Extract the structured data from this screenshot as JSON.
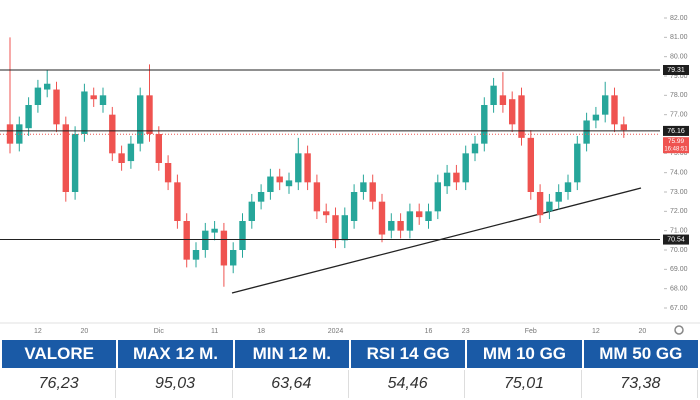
{
  "chart_data": {
    "type": "candlestick",
    "categories": [
      null,
      null,
      null,
      "12",
      null,
      null,
      null,
      null,
      "20",
      null,
      null,
      null,
      null,
      null,
      null,
      null,
      "Dic",
      null,
      null,
      null,
      null,
      null,
      "11",
      null,
      null,
      null,
      null,
      "18",
      null,
      null,
      null,
      null,
      null,
      null,
      null,
      "2024",
      null,
      null,
      null,
      null,
      null,
      null,
      null,
      null,
      null,
      "16",
      null,
      null,
      null,
      "23",
      null,
      null,
      null,
      null,
      null,
      null,
      "Feb",
      null,
      null,
      null,
      null,
      null,
      null,
      "12",
      null,
      null,
      null,
      null,
      "20"
    ],
    "open": [
      76.5,
      75.5,
      76.3,
      77.5,
      78.3,
      78.3,
      76.5,
      73.0,
      76.0,
      78.0,
      77.5,
      77.0,
      75.0,
      74.6,
      75.5,
      78.0,
      76.0,
      74.5,
      73.5,
      71.5,
      69.5,
      70.0,
      70.9,
      71.0,
      69.2,
      70.0,
      71.5,
      72.5,
      73.0,
      73.8,
      73.3,
      73.5,
      75.0,
      73.5,
      72.0,
      71.8,
      70.5,
      71.5,
      73.0,
      73.5,
      72.5,
      71.0,
      71.5,
      71.0,
      72.0,
      71.5,
      72.0,
      73.3,
      74.0,
      73.5,
      75.0,
      75.5,
      77.5,
      78.0,
      77.8,
      78.0,
      75.8,
      73.0,
      72.0,
      72.5,
      73.0,
      73.5,
      75.5,
      76.7,
      77.0,
      78.0,
      76.5,
      null,
      null
    ],
    "high": [
      81.0,
      76.9,
      77.9,
      78.8,
      79.3,
      78.7,
      76.9,
      76.4,
      78.6,
      78.4,
      78.4,
      77.4,
      75.4,
      75.9,
      78.4,
      79.6,
      76.4,
      74.9,
      73.9,
      71.9,
      70.4,
      71.4,
      71.5,
      71.4,
      70.4,
      71.9,
      72.9,
      73.4,
      74.2,
      74.2,
      74.0,
      75.8,
      75.4,
      73.9,
      72.4,
      72.2,
      72.2,
      73.4,
      73.9,
      73.9,
      72.9,
      71.9,
      71.9,
      72.4,
      72.4,
      72.4,
      73.9,
      74.4,
      74.4,
      75.4,
      75.9,
      77.9,
      78.9,
      79.2,
      78.2,
      78.4,
      76.2,
      73.4,
      72.9,
      73.4,
      73.9,
      75.9,
      77.1,
      77.4,
      78.7,
      78.4,
      76.9,
      null,
      null
    ],
    "low": [
      75.0,
      75.1,
      75.9,
      77.1,
      77.9,
      76.1,
      72.5,
      72.6,
      75.6,
      77.4,
      77.1,
      74.6,
      74.1,
      74.2,
      75.1,
      75.6,
      74.1,
      73.1,
      71.1,
      69.1,
      69.1,
      69.6,
      70.5,
      68.1,
      68.8,
      69.6,
      71.1,
      72.1,
      72.6,
      73.1,
      72.9,
      73.1,
      73.1,
      71.6,
      71.4,
      70.1,
      70.1,
      71.1,
      72.6,
      72.1,
      70.4,
      70.6,
      70.6,
      70.6,
      71.3,
      71.1,
      71.6,
      72.9,
      73.1,
      73.1,
      74.6,
      75.1,
      77.1,
      77.1,
      76.1,
      75.4,
      72.6,
      71.4,
      71.6,
      72.1,
      72.6,
      73.1,
      75.1,
      76.3,
      76.6,
      76.1,
      75.8,
      null,
      null
    ],
    "close": [
      75.5,
      76.5,
      77.5,
      78.4,
      78.6,
      76.5,
      73.0,
      76.0,
      78.2,
      77.8,
      78.0,
      75.0,
      74.5,
      75.5,
      78.0,
      76.0,
      74.5,
      73.5,
      71.5,
      69.5,
      70.0,
      71.0,
      71.1,
      69.2,
      70.0,
      71.5,
      72.5,
      73.0,
      73.8,
      73.5,
      73.6,
      75.0,
      73.5,
      72.0,
      71.8,
      70.5,
      71.8,
      73.0,
      73.5,
      72.5,
      70.8,
      71.5,
      71.0,
      72.0,
      71.7,
      72.0,
      73.5,
      74.0,
      73.5,
      75.0,
      75.5,
      77.5,
      78.5,
      77.5,
      76.5,
      75.8,
      73.0,
      71.8,
      72.5,
      73.0,
      73.5,
      75.5,
      76.7,
      77.0,
      78.0,
      76.5,
      76.2,
      null,
      null
    ],
    "up_color": "#26a69a",
    "down_color": "#ef5350",
    "ylim": [
      67,
      82
    ],
    "yticks": [
      {
        "value": 67,
        "label": "67.00"
      },
      {
        "value": 68,
        "label": "68.00"
      },
      {
        "value": 69,
        "label": "69.00"
      },
      {
        "value": 70,
        "label": "70.00"
      },
      {
        "value": 71,
        "label": "71.00"
      },
      {
        "value": 72,
        "label": "72.00"
      },
      {
        "value": 73,
        "label": "73.00"
      },
      {
        "value": 74,
        "label": "74.00"
      },
      {
        "value": 75,
        "label": "75.00"
      },
      {
        "value": 76,
        "label": "76.00"
      },
      {
        "value": 77,
        "label": "77.00"
      },
      {
        "value": 78,
        "label": "78.00"
      },
      {
        "value": 79,
        "label": "79.00"
      },
      {
        "value": 80,
        "label": "80.00"
      },
      {
        "value": 81,
        "label": "81.00"
      },
      {
        "value": 82,
        "label": "82.00"
      }
    ],
    "levels": [
      79.31,
      76.16,
      70.54
    ],
    "last_price": 75.99,
    "countdown": "16:48:51"
  },
  "table": {
    "headers": [
      "VALORE",
      "MAX 12 M.",
      "MIN 12 M.",
      "RSI 14 GG",
      "MM 10 GG",
      "MM 50 GG"
    ],
    "values": [
      "76,23",
      "95,03",
      "63,64",
      "54,46",
      "75,01",
      "73,38"
    ]
  }
}
